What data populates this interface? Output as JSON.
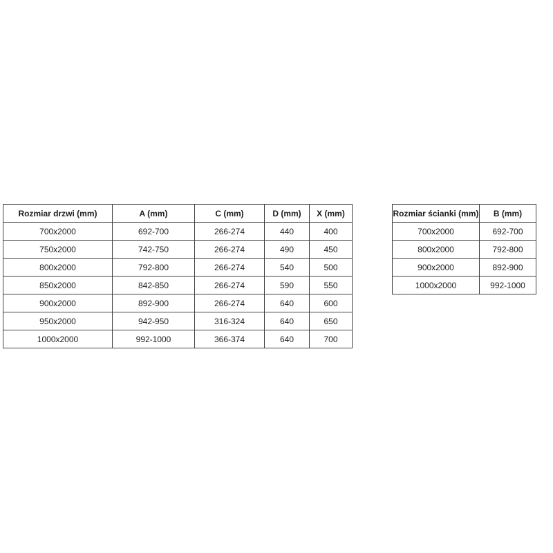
{
  "colors": {
    "background": "#ffffff",
    "table_border": "#404040",
    "text": "#1c1c1c"
  },
  "tables": {
    "doors": {
      "name": "door-sizes-table",
      "headers": [
        "Rozmiar drzwi (mm)",
        "A (mm)",
        "C (mm)",
        "D (mm)",
        "X (mm)"
      ],
      "rows": [
        [
          "700x2000",
          "692-700",
          "266-274",
          "440",
          "400"
        ],
        [
          "750x2000",
          "742-750",
          "266-274",
          "490",
          "450"
        ],
        [
          "800x2000",
          "792-800",
          "266-274",
          "540",
          "500"
        ],
        [
          "850x2000",
          "842-850",
          "266-274",
          "590",
          "550"
        ],
        [
          "900x2000",
          "892-900",
          "266-274",
          "640",
          "600"
        ],
        [
          "950x2000",
          "942-950",
          "316-324",
          "640",
          "650"
        ],
        [
          "1000x2000",
          "992-1000",
          "366-374",
          "640",
          "700"
        ]
      ]
    },
    "wall": {
      "name": "wall-sizes-table",
      "headers": [
        "Rozmiar ścianki (mm)",
        "B (mm)"
      ],
      "rows": [
        [
          "700x2000",
          "692-700"
        ],
        [
          "800x2000",
          "792-800"
        ],
        [
          "900x2000",
          "892-900"
        ],
        [
          "1000x2000",
          "992-1000"
        ]
      ]
    }
  }
}
